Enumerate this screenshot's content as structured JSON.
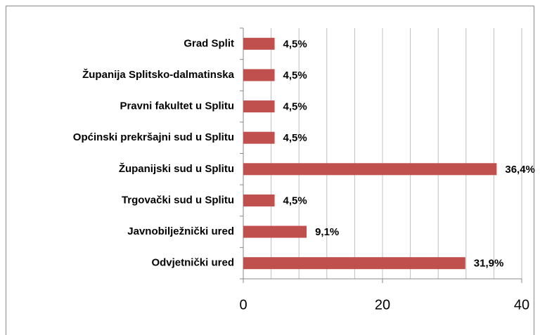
{
  "chart_data": {
    "type": "bar",
    "orientation": "horizontal",
    "categories": [
      "Grad Split",
      "Županija Splitsko-dalmatinska",
      "Pravni fakultet u Splitu",
      "Općinski prekršajni sud u Splitu",
      "Županijski sud u Splitu",
      "Trgovački sud u Splitu",
      "Javnobilježnički ured",
      "Odvjetnički ured"
    ],
    "values": [
      4.5,
      4.5,
      4.5,
      4.5,
      36.4,
      4.5,
      9.1,
      31.9
    ],
    "value_labels": [
      "4,5%",
      "4,5%",
      "4,5%",
      "4,5%",
      "36,4%",
      "4,5%",
      "9,1%",
      "31,9%"
    ],
    "color": "#c0504d",
    "xlim": [
      0,
      40
    ],
    "xticks": [
      0,
      20,
      40
    ],
    "xgrid": [
      4,
      8,
      12,
      16,
      20,
      24,
      28,
      32,
      36,
      40
    ],
    "grid": true
  }
}
